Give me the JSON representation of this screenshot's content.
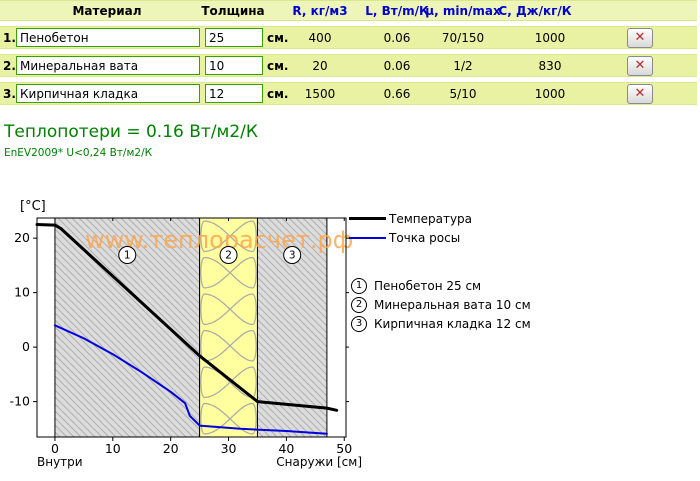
{
  "table": {
    "headers": {
      "material": "Материал",
      "thickness": "Толщина",
      "density": "R, кг/м3",
      "lambda": "L, Вт/m/К",
      "mu": "μ, min/max",
      "capacity": "С, Дж/кг/К"
    },
    "unit": "см.",
    "delete_label": "✕",
    "rows": [
      {
        "num": "1.",
        "material": "Пенобетон",
        "thickness": "25",
        "density": "400",
        "lambda": "0.06",
        "mu": "70/150",
        "capacity": "1000"
      },
      {
        "num": "2.",
        "material": "Минеральная вата",
        "thickness": "10",
        "density": "20",
        "lambda": "0.06",
        "mu": "1/2",
        "capacity": "830"
      },
      {
        "num": "3.",
        "material": "Кирпичная кладка",
        "thickness": "12",
        "density": "1500",
        "lambda": "0.66",
        "mu": "5/10",
        "capacity": "1000"
      }
    ]
  },
  "summary": {
    "heat_loss": "Теплопотери = 0.16 Вт/м2/К",
    "standard_note": "EnEV2009* U<0,24 Вт/м2/К",
    "text_color": "#008000"
  },
  "chart_data": {
    "type": "line",
    "ylabel": "[°C]",
    "xlabel_left": "Внутри",
    "xlabel_right": "Снаружи [см]",
    "x_ticks": [
      0,
      10,
      20,
      30,
      40,
      50
    ],
    "y_ticks": [
      20,
      10,
      0,
      -10
    ],
    "xlim": [
      -3.1,
      50.3
    ],
    "ylim": [
      -16.5,
      23.7
    ],
    "watermark": "www.теплорасчет.рф",
    "series": [
      {
        "name": "Температура",
        "key": "temperature-line",
        "color": "#000000",
        "width": 3,
        "points": [
          [
            -3.1,
            22.5
          ],
          [
            0,
            22.4
          ],
          [
            1,
            21.8
          ],
          [
            25,
            -1.6
          ],
          [
            35,
            -10.0
          ],
          [
            47,
            -11.2
          ],
          [
            48.7,
            -11.6
          ]
        ]
      },
      {
        "name": "Точка росы",
        "key": "dewpoint-line",
        "color": "#0000e0",
        "width": 2,
        "points": [
          [
            0,
            4.0
          ],
          [
            5,
            1.6
          ],
          [
            10,
            -1.3
          ],
          [
            15,
            -4.6
          ],
          [
            20,
            -8.2
          ],
          [
            22.5,
            -10.3
          ],
          [
            23.3,
            -12.6
          ],
          [
            25,
            -14.4
          ],
          [
            32,
            -15.0
          ],
          [
            40,
            -15.4
          ],
          [
            47,
            -15.9
          ]
        ]
      }
    ],
    "layers": [
      {
        "id": "1",
        "label": "Пенобетон 25 см",
        "from": 0,
        "to": 25,
        "pattern": "hatch"
      },
      {
        "id": "2",
        "label": "Минеральная вата 10 см",
        "from": 25,
        "to": 35,
        "pattern": "insulation"
      },
      {
        "id": "3",
        "label": "Кирпичная кладка 12 см",
        "from": 35,
        "to": 47,
        "pattern": "hatch"
      }
    ],
    "colors": {
      "hatch_bg": "#dcdcdc",
      "hatch_line": "#b0b0b0",
      "insulation_bg": "#ffffa0",
      "insulation_line": "#a8a8a8",
      "watermark": "#ffa64d",
      "axis": "#000000"
    }
  }
}
